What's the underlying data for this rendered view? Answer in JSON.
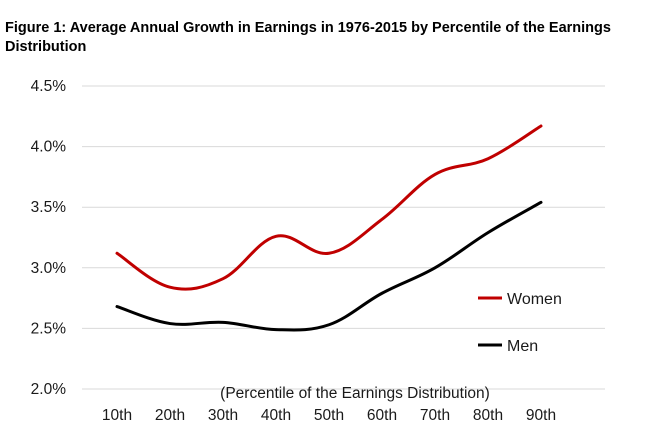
{
  "title": "Figure 1: Average Annual Growth in Earnings in 1976-2015 by Percentile of the Earnings Distribution",
  "chart_data": {
    "type": "line",
    "title": "Figure 1: Average Annual Growth in Earnings in 1976-2015 by Percentile of the Earnings Distribution",
    "xlabel": "(Percentile of the Earnings Distribution)",
    "ylabel": "",
    "categories": [
      "10th",
      "20th",
      "30th",
      "40th",
      "50th",
      "60th",
      "70th",
      "80th",
      "90th"
    ],
    "yticks": [
      "2.0%",
      "2.5%",
      "3.0%",
      "3.5%",
      "4.0%",
      "4.5%"
    ],
    "ylim": [
      2.0,
      4.5
    ],
    "grid": true,
    "legend": "right",
    "series": [
      {
        "name": "Women",
        "color": "#c00000",
        "values": [
          3.12,
          2.84,
          2.91,
          3.26,
          3.12,
          3.4,
          3.77,
          3.9,
          4.17
        ]
      },
      {
        "name": "Men",
        "color": "#000000",
        "values": [
          2.68,
          2.54,
          2.55,
          2.49,
          2.53,
          2.79,
          3.0,
          3.29,
          3.54
        ]
      }
    ]
  }
}
